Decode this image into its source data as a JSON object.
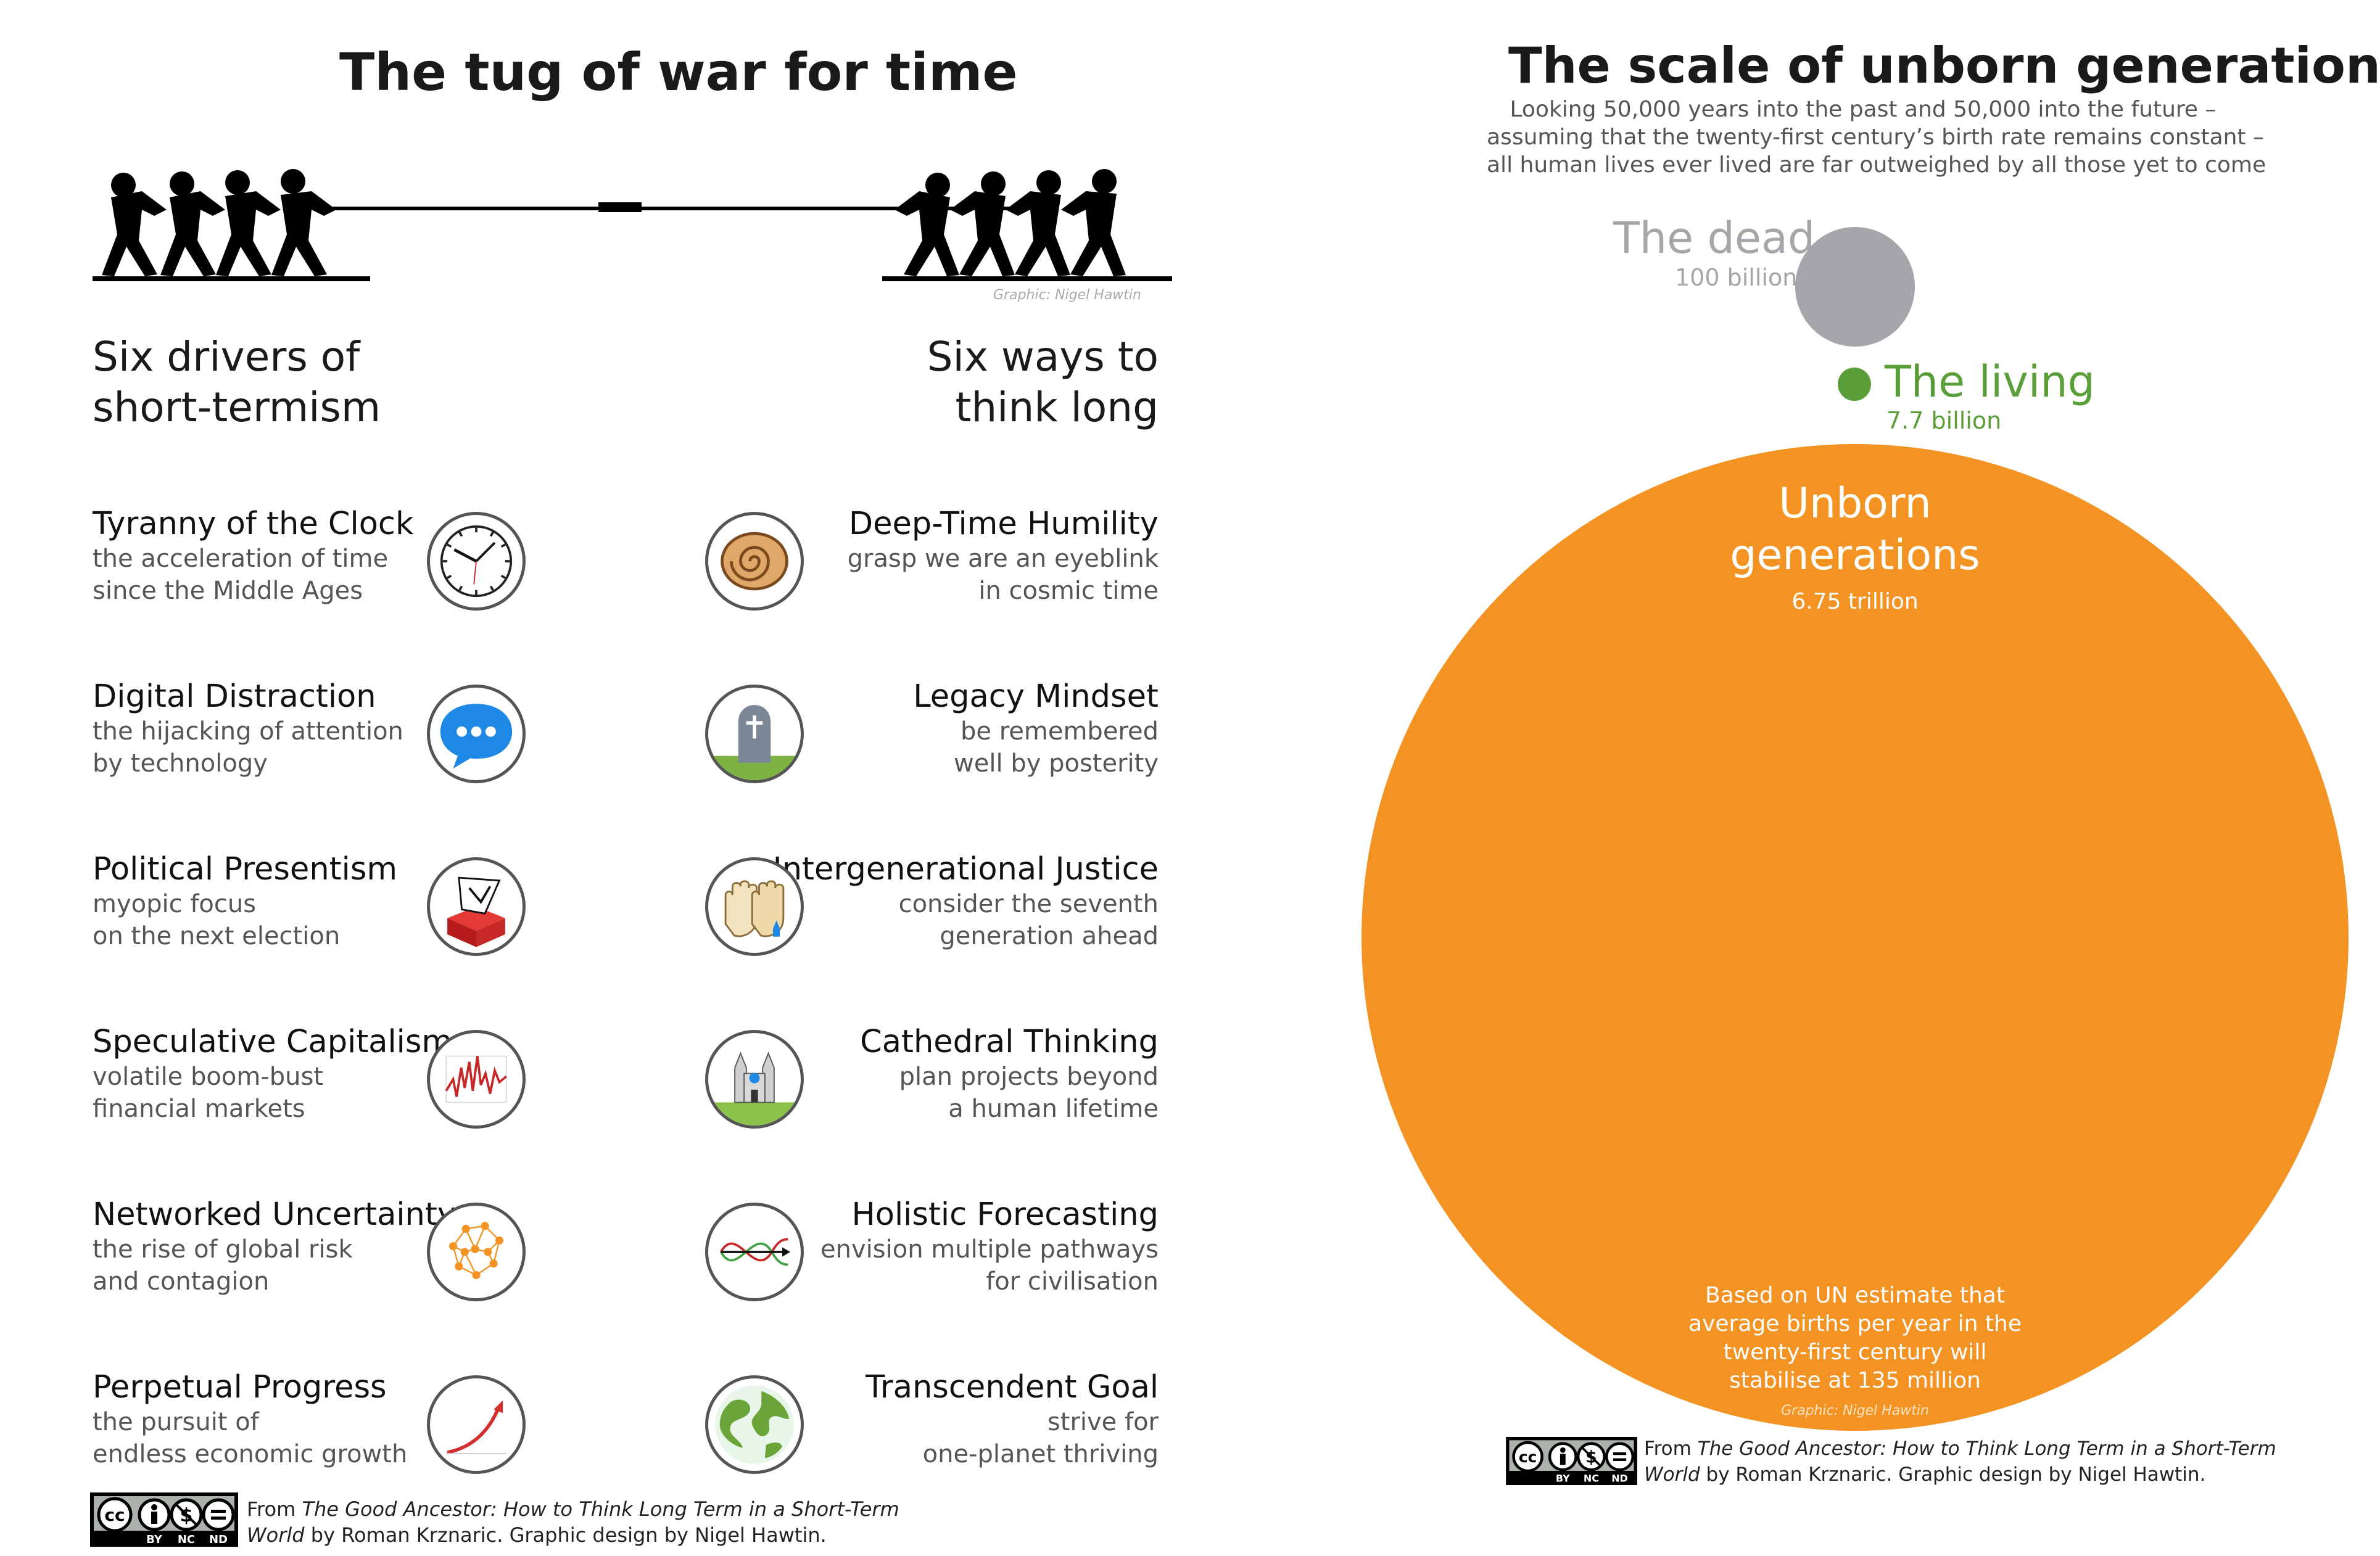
{
  "left": {
    "title": "The tug of war for time",
    "graphic_credit": "Graphic: Nigel Hawtin",
    "left_heading": [
      "Six drivers of",
      "short-termism"
    ],
    "right_heading": [
      "Six ways to",
      "think long"
    ],
    "drivers": [
      {
        "title": "Tyranny of the Clock",
        "desc": [
          "the acceleration of time",
          "since the Middle Ages"
        ],
        "icon": "clock-icon"
      },
      {
        "title": "Digital Distraction",
        "desc": [
          "the hijacking of attention",
          "by technology"
        ],
        "icon": "speech-bubble-icon"
      },
      {
        "title": "Political Presentism",
        "desc": [
          "myopic focus",
          "on the next election"
        ],
        "icon": "ballot-box-icon"
      },
      {
        "title": "Speculative Capitalism",
        "desc": [
          "volatile boom-bust",
          "financial markets"
        ],
        "icon": "volatile-chart-icon"
      },
      {
        "title": "Networked Uncertainty",
        "desc": [
          "the rise of global risk",
          "and contagion"
        ],
        "icon": "network-icon"
      },
      {
        "title": "Perpetual Progress",
        "desc": [
          "the pursuit of",
          "endless economic growth"
        ],
        "icon": "growth-arrow-icon"
      }
    ],
    "ways": [
      {
        "title": "Deep-Time Humility",
        "desc": [
          "grasp we are an eyeblink",
          "in cosmic time"
        ],
        "icon": "ammonite-icon"
      },
      {
        "title": "Legacy Mindset",
        "desc": [
          "be remembered",
          "well by posterity"
        ],
        "icon": "gravestone-icon"
      },
      {
        "title": "Intergenerational Justice",
        "desc": [
          "consider the seventh",
          "generation ahead"
        ],
        "icon": "hands-icon"
      },
      {
        "title": "Cathedral Thinking",
        "desc": [
          "plan projects beyond",
          "a human lifetime"
        ],
        "icon": "cathedral-icon"
      },
      {
        "title": "Holistic Forecasting",
        "desc": [
          "envision multiple pathways",
          "for civilisation"
        ],
        "icon": "pathways-icon"
      },
      {
        "title": "Transcendent Goal",
        "desc": [
          "strive for",
          "one-planet thriving"
        ],
        "icon": "globe-icon"
      }
    ],
    "credit": {
      "from": "From ",
      "book": "The Good Ancestor: How to Think Long Term in a Short-Term",
      "book2": "World",
      "rest": " by Roman Krznaric. Graphic design by Nigel Hawtin."
    },
    "cc_labels": [
      "BY",
      "NC",
      "ND"
    ]
  },
  "right": {
    "title": "The scale of unborn generations",
    "subtitle": [
      "Looking 50,000 years into the past and 50,000 into the future –",
      "assuming that the twenty-first century’s birth rate remains constant –",
      "all human lives ever lived are far outweighed by all those yet to come"
    ],
    "dead": {
      "label": "The dead",
      "value": "100 billion",
      "color": "#a6a6aa"
    },
    "living": {
      "label": "The living",
      "value": "7.7 billion",
      "color": "#5a9e3a"
    },
    "unborn": {
      "label": [
        "Unborn",
        "generations"
      ],
      "value": "6.75 trillion",
      "color": "#f39323"
    },
    "note": [
      "Based on UN estimate that",
      "average births per year in the",
      "twenty-first century will",
      "stabilise at 135 million"
    ],
    "graphic_credit": "Graphic: Nigel Hawtin",
    "credit": {
      "from": "From ",
      "book": "The Good Ancestor: How to Think Long Term in a Short-Term",
      "book2": "World",
      "rest": " by Roman Krznaric. Graphic design by Nigel Hawtin."
    },
    "cc_labels": [
      "BY",
      "NC",
      "ND"
    ]
  }
}
